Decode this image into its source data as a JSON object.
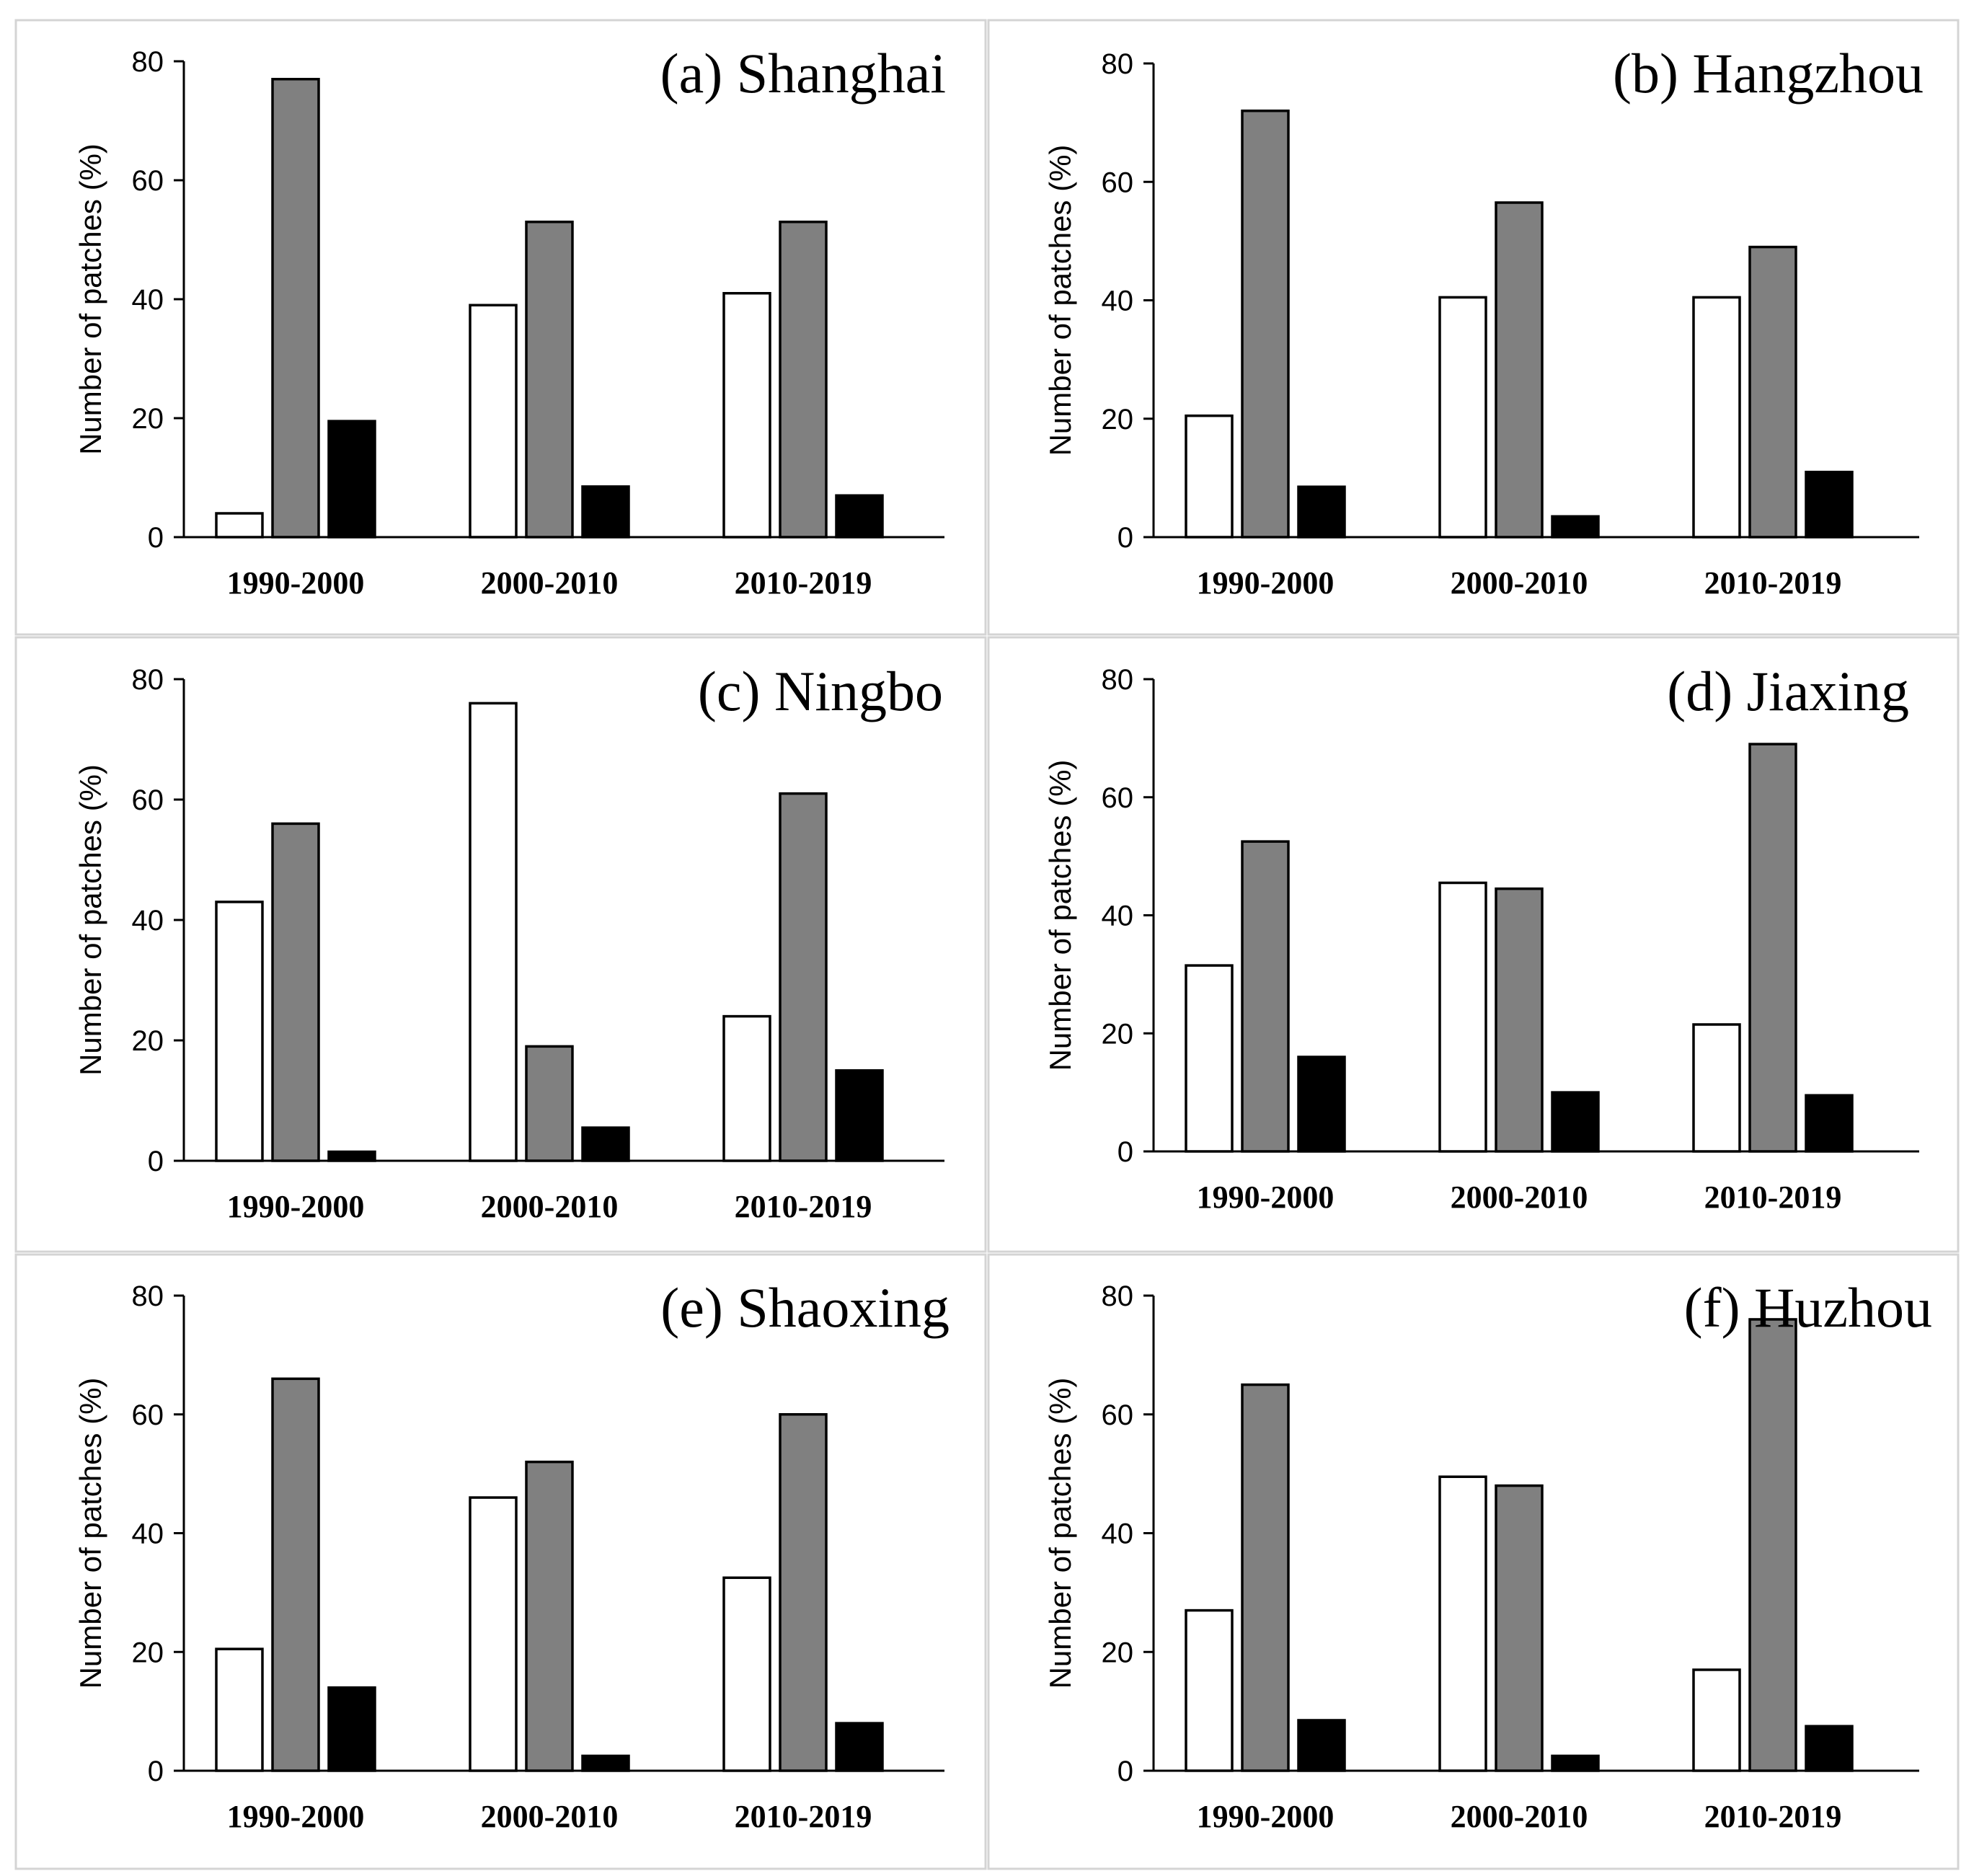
{
  "figure": {
    "bar_colors": [
      "#ffffff",
      "#808080",
      "#000000"
    ]
  },
  "chart_data": [
    {
      "type": "bar",
      "title": "(a) Shanghai",
      "xlabel": "",
      "ylabel": "Number of patches (%)",
      "ylim": [
        0,
        80
      ],
      "yticks": [
        0,
        20,
        40,
        60,
        80
      ],
      "categories": [
        "1990-2000",
        "2000-2010",
        "2010-2019"
      ],
      "series": [
        {
          "name": "white",
          "color": "#ffffff",
          "values": [
            4,
            39,
            41
          ]
        },
        {
          "name": "gray",
          "color": "#808080",
          "values": [
            77,
            53,
            53
          ]
        },
        {
          "name": "black",
          "color": "#000000",
          "values": [
            19.5,
            8.5,
            7
          ]
        }
      ]
    },
    {
      "type": "bar",
      "title": "(b) Hangzhou",
      "xlabel": "",
      "ylabel": "Number of patches (%)",
      "ylim": [
        0,
        80
      ],
      "yticks": [
        0,
        20,
        40,
        60,
        80
      ],
      "categories": [
        "1990-2000",
        "2000-2010",
        "2010-2019"
      ],
      "series": [
        {
          "name": "white",
          "color": "#ffffff",
          "values": [
            20.5,
            40.5,
            40.5
          ]
        },
        {
          "name": "gray",
          "color": "#808080",
          "values": [
            72,
            56.5,
            49
          ]
        },
        {
          "name": "black",
          "color": "#000000",
          "values": [
            8.5,
            3.5,
            11
          ]
        }
      ]
    },
    {
      "type": "bar",
      "title": "(c) Ningbo",
      "xlabel": "",
      "ylabel": "Number of patches (%)",
      "ylim": [
        0,
        80
      ],
      "yticks": [
        0,
        20,
        40,
        60,
        80
      ],
      "categories": [
        "1990-2000",
        "2000-2010",
        "2010-2019"
      ],
      "series": [
        {
          "name": "white",
          "color": "#ffffff",
          "values": [
            43,
            76,
            24
          ]
        },
        {
          "name": "gray",
          "color": "#808080",
          "values": [
            56,
            19,
            61
          ]
        },
        {
          "name": "black",
          "color": "#000000",
          "values": [
            1.5,
            5.5,
            15
          ]
        }
      ]
    },
    {
      "type": "bar",
      "title": "(d) Jiaxing",
      "xlabel": "",
      "ylabel": "Number of patches (%)",
      "ylim": [
        0,
        80
      ],
      "yticks": [
        0,
        20,
        40,
        60,
        80
      ],
      "categories": [
        "1990-2000",
        "2000-2010",
        "2010-2019"
      ],
      "series": [
        {
          "name": "white",
          "color": "#ffffff",
          "values": [
            31.5,
            45.5,
            21.5
          ]
        },
        {
          "name": "gray",
          "color": "#808080",
          "values": [
            52.5,
            44.5,
            69
          ]
        },
        {
          "name": "black",
          "color": "#000000",
          "values": [
            16,
            10,
            9.5
          ]
        }
      ]
    },
    {
      "type": "bar",
      "title": "(e) Shaoxing",
      "xlabel": "",
      "ylabel": "Number of patches (%)",
      "ylim": [
        0,
        80
      ],
      "yticks": [
        0,
        20,
        40,
        60,
        80
      ],
      "categories": [
        "1990-2000",
        "2000-2010",
        "2010-2019"
      ],
      "series": [
        {
          "name": "white",
          "color": "#ffffff",
          "values": [
            20.5,
            46,
            32.5
          ]
        },
        {
          "name": "gray",
          "color": "#808080",
          "values": [
            66,
            52,
            60
          ]
        },
        {
          "name": "black",
          "color": "#000000",
          "values": [
            14,
            2.5,
            8
          ]
        }
      ]
    },
    {
      "type": "bar",
      "title": "(f) Huzhou",
      "xlabel": "",
      "ylabel": "Number of patches (%)",
      "ylim": [
        0,
        80
      ],
      "yticks": [
        0,
        20,
        40,
        60,
        80
      ],
      "categories": [
        "1990-2000",
        "2000-2010",
        "2010-2019"
      ],
      "series": [
        {
          "name": "white",
          "color": "#ffffff",
          "values": [
            27,
            49.5,
            17
          ]
        },
        {
          "name": "gray",
          "color": "#808080",
          "values": [
            65,
            48,
            76
          ]
        },
        {
          "name": "black",
          "color": "#000000",
          "values": [
            8.5,
            2.5,
            7.5
          ]
        }
      ]
    }
  ]
}
